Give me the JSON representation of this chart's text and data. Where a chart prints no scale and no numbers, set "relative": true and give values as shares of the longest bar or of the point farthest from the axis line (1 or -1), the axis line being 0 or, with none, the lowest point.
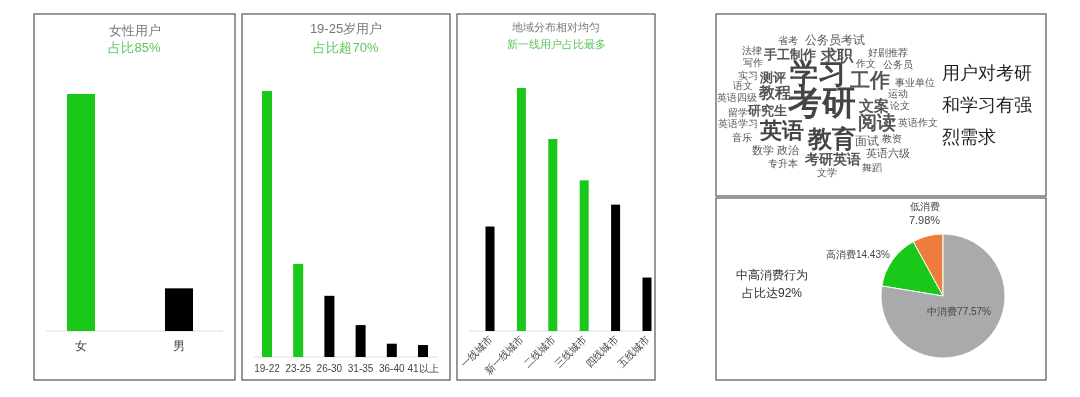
{
  "chart_data": [
    {
      "type": "bar",
      "title": "女性用户",
      "subtitle": "占比85%",
      "relative": true,
      "categories": [
        "女",
        "男"
      ],
      "values": [
        1,
        0.18
      ],
      "colors": [
        "#19c819",
        "#000000"
      ]
    },
    {
      "type": "bar",
      "title": "19-25岁用户",
      "subtitle": "占比超70%",
      "relative": true,
      "categories": [
        "19-22",
        "23-25",
        "26-30",
        "31-35",
        "36-40",
        "41以上"
      ],
      "values": [
        1,
        0.35,
        0.23,
        0.12,
        0.05,
        0.045
      ],
      "colors": [
        "#19c819",
        "#19c819",
        "#000000",
        "#000000",
        "#000000",
        "#000000"
      ]
    },
    {
      "type": "bar",
      "title": "地域分布相对均匀",
      "subtitle": "新一线用户占比最多",
      "relative": true,
      "categories": [
        "一线城市",
        "新一线城市",
        "二线城市",
        "三线城市",
        "四线城市",
        "五线城市"
      ],
      "values": [
        0.43,
        1,
        0.79,
        0.62,
        0.52,
        0.22
      ],
      "colors": [
        "#000000",
        "#19c819",
        "#19c819",
        "#19c819",
        "#000000",
        "#000000"
      ]
    },
    {
      "type": "other",
      "title": "用户对考研和学习有强烈需求",
      "annotations": [
        "考研",
        "学习",
        "工作",
        "英语",
        "教育",
        "阅读",
        "求职",
        "教程",
        "文案",
        "考研英语",
        "测评",
        "研究生",
        "手工制作",
        "公务员考试",
        "面试",
        "英语六级",
        "数学",
        "政治",
        "专升本",
        "好剧推荐",
        "作文",
        "公务员",
        "省考",
        "法律",
        "写作",
        "实习",
        "语文",
        "英语四级",
        "事业单位",
        "运动",
        "论文",
        "留学",
        "英语学习",
        "英语作文",
        "音乐",
        "教资",
        "舞蹈",
        "文学"
      ]
    },
    {
      "type": "pie",
      "categories": [
        "低消费",
        "高消费",
        "中消费"
      ],
      "values": [
        7.98,
        14.43,
        77.57
      ],
      "value_labels": [
        "7.98%",
        "14.43%",
        "77.57%"
      ],
      "colors": [
        "#ee7c3c",
        "#19c819",
        "#aaaaaa"
      ],
      "annotations": [
        "中高消费行为占比达92%"
      ]
    }
  ]
}
